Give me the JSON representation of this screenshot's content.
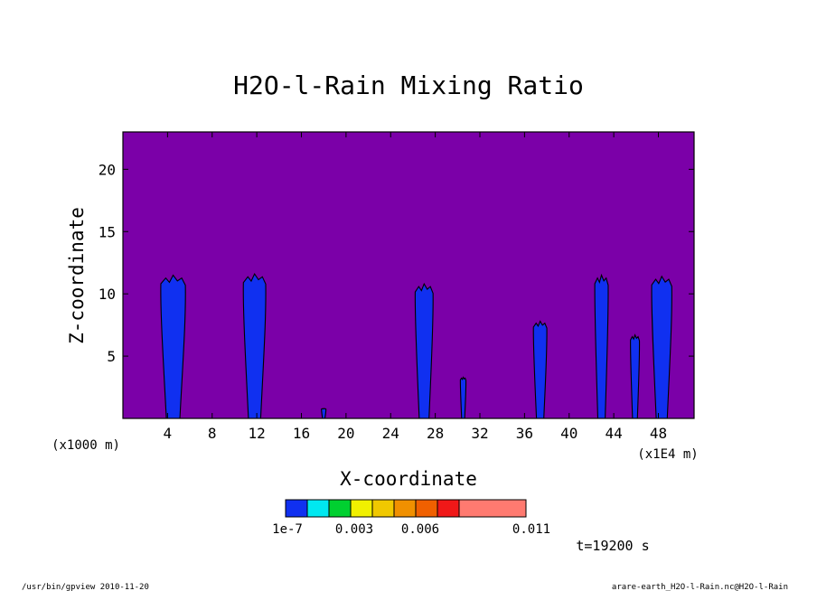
{
  "footer": {
    "left": "/usr/bin/gpview  2010-11-20",
    "right": "arare-earth_H2O-l-Rain.nc@H2O-l-Rain"
  },
  "time_label": "t=19200 s",
  "chart_data": {
    "type": "contour",
    "title": "H2O-l-Rain Mixing Ratio",
    "xlabel": "X-coordinate",
    "ylabel": "Z-coordinate",
    "x_unit_left": "(x1000 m)",
    "x_unit_right": "(x1E4 m)",
    "xlim": [
      0,
      51.2
    ],
    "ylim": [
      0,
      23
    ],
    "x_ticks": [
      4,
      8,
      12,
      16,
      20,
      24,
      28,
      32,
      36,
      40,
      44,
      48
    ],
    "y_ticks": [
      5,
      10,
      15,
      20
    ],
    "background_color": "#7B00A8",
    "colorbar": {
      "colors": [
        "#1030F0",
        "#00E8F0",
        "#00D030",
        "#F0F000",
        "#F0C800",
        "#F09000",
        "#F06000",
        "#F01818",
        "#FF7A70"
      ],
      "tick_labels": [
        "1e-7",
        "0.003",
        "0.006",
        "0.011"
      ]
    },
    "plumes": [
      {
        "x_center": 4.5,
        "width": 2.2,
        "top": 11.5
      },
      {
        "x_center": 11.8,
        "width": 2.0,
        "top": 11.6
      },
      {
        "x_center": 18.0,
        "width": 0.4,
        "top": 0.8
      },
      {
        "x_center": 27.0,
        "width": 1.6,
        "top": 10.8
      },
      {
        "x_center": 30.5,
        "width": 0.5,
        "top": 3.3
      },
      {
        "x_center": 37.4,
        "width": 1.2,
        "top": 7.8
      },
      {
        "x_center": 42.9,
        "width": 1.2,
        "top": 11.5
      },
      {
        "x_center": 45.9,
        "width": 0.8,
        "top": 6.7
      },
      {
        "x_center": 48.3,
        "width": 1.8,
        "top": 11.4
      }
    ]
  }
}
